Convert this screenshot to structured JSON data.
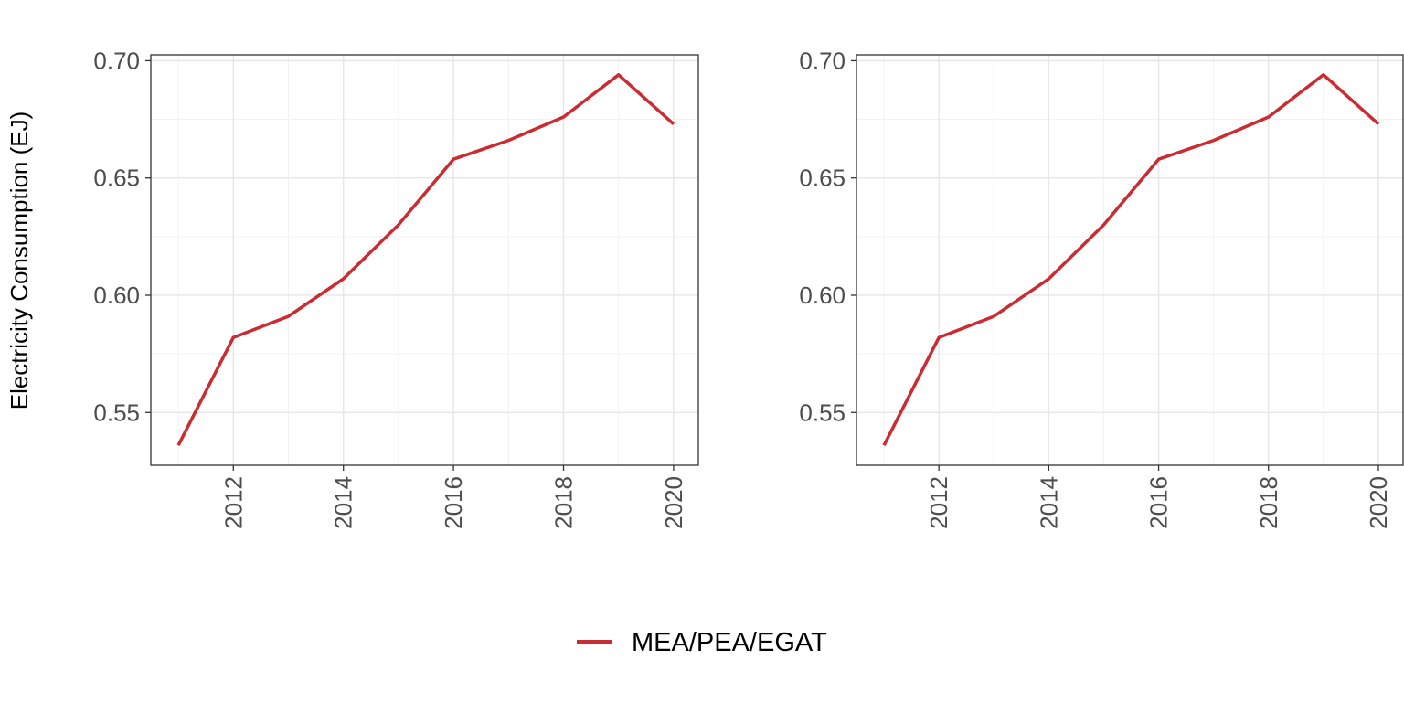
{
  "colors": {
    "series": "#cb2c31",
    "grid_major": "#e6e6e6",
    "grid_minor": "#f2f2f2",
    "panel_border": "#333333",
    "tick_text": "#4d4d4d"
  },
  "legend": {
    "position": "bottom",
    "entries": [
      "MEA/PEA/EGAT"
    ]
  },
  "chart_data": [
    {
      "type": "line",
      "title": "",
      "xlabel": "",
      "ylabel": "Electricity Consumption (EJ)",
      "xlim": [
        2010.5,
        2020.45
      ],
      "ylim": [
        0.5275,
        0.7025
      ],
      "xticks": [
        "2012",
        "2014",
        "2016",
        "2018",
        "2020"
      ],
      "yticks": [
        "0.55",
        "0.60",
        "0.65",
        "0.70"
      ],
      "grid": true,
      "series": [
        {
          "name": "MEA/PEA/EGAT",
          "x": [
            2011,
            2012,
            2013,
            2014,
            2015,
            2016,
            2017,
            2018,
            2019,
            2020
          ],
          "y": [
            0.536,
            0.582,
            0.591,
            0.607,
            0.63,
            0.658,
            0.666,
            0.676,
            0.694,
            0.673
          ]
        }
      ]
    },
    {
      "type": "line",
      "title": "",
      "xlabel": "",
      "ylabel": "",
      "xlim": [
        2010.5,
        2020.45
      ],
      "ylim": [
        0.5275,
        0.7025
      ],
      "xticks": [
        "2012",
        "2014",
        "2016",
        "2018",
        "2020"
      ],
      "yticks": [
        "0.55",
        "0.60",
        "0.65",
        "0.70"
      ],
      "grid": true,
      "series": [
        {
          "name": "MEA/PEA/EGAT",
          "x": [
            2011,
            2012,
            2013,
            2014,
            2015,
            2016,
            2017,
            2018,
            2019,
            2020
          ],
          "y": [
            0.536,
            0.582,
            0.591,
            0.607,
            0.63,
            0.658,
            0.666,
            0.676,
            0.694,
            0.673
          ]
        }
      ]
    }
  ]
}
